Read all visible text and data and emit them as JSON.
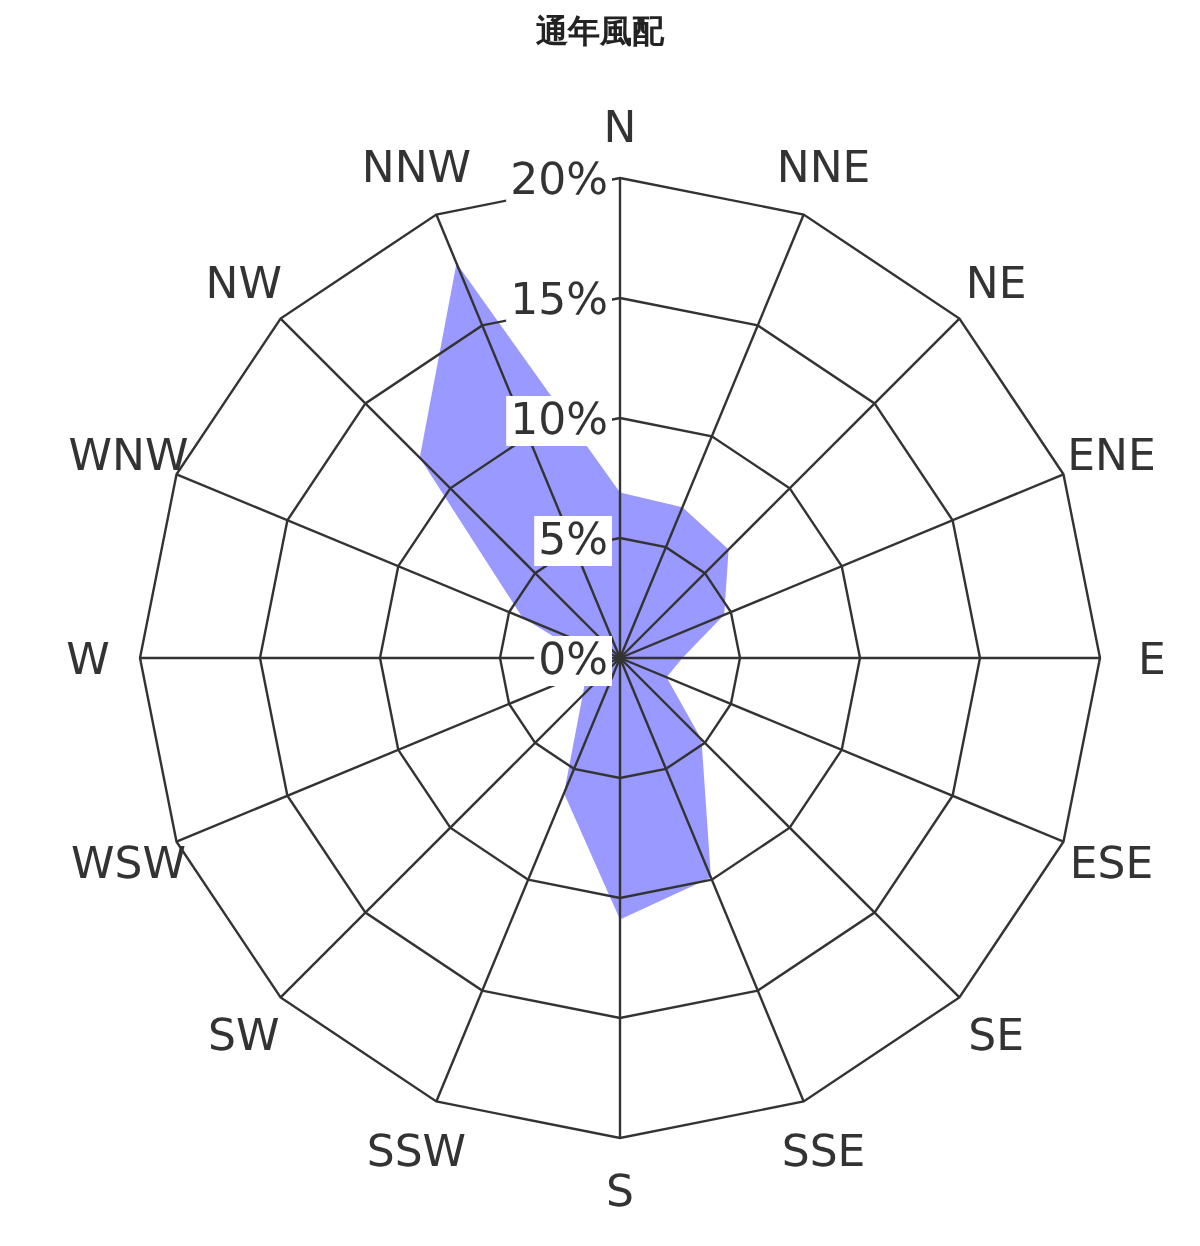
{
  "chart_data": {
    "type": "radar",
    "title": "通年風配",
    "categories": [
      "N",
      "NNE",
      "NE",
      "ENE",
      "E",
      "ESE",
      "SE",
      "SSE",
      "S",
      "SSW",
      "SW",
      "WSW",
      "W",
      "WNW",
      "NW",
      "NNW"
    ],
    "series": [
      {
        "color": "#9999ff",
        "values": [
          6.9,
          6.8,
          6.4,
          4.7,
          2.6,
          2.1,
          4.8,
          9.9,
          10.9,
          6.1,
          2.2,
          1.5,
          1.3,
          4.4,
          11.8,
          17.8
        ]
      }
    ],
    "ylim": [
      0,
      20
    ],
    "yticks": [
      {
        "value": 0,
        "label": "0%"
      },
      {
        "value": 5,
        "label": "5%"
      },
      {
        "value": 10,
        "label": "10%"
      },
      {
        "value": 15,
        "label": "15%"
      },
      {
        "value": 20,
        "label": "20%"
      }
    ],
    "grid": true
  }
}
